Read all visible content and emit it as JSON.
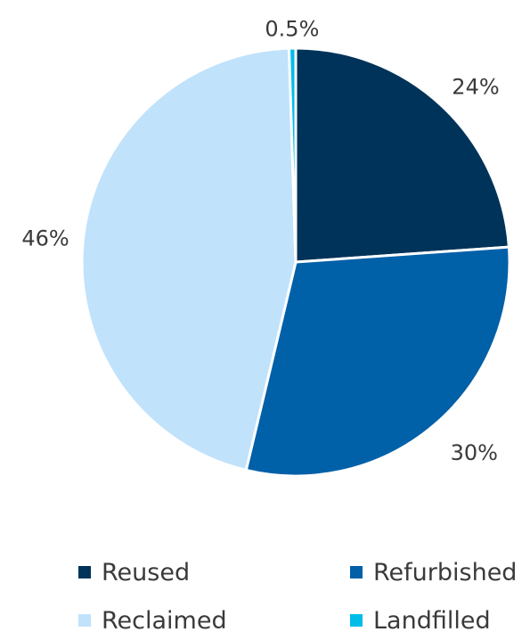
{
  "chart_data": {
    "type": "pie",
    "slices": [
      {
        "label": "Reused",
        "value": 24,
        "display": "24%",
        "color": "#003359"
      },
      {
        "label": "Refurbished",
        "value": 30,
        "display": "30%",
        "color": "#0060a8"
      },
      {
        "label": "Reclaimed",
        "value": 46,
        "display": "46%",
        "color": "#c1e2fb"
      },
      {
        "label": "Landfilled",
        "value": 0.5,
        "display": "0.5%",
        "color": "#00bde8"
      }
    ],
    "start": "top",
    "direction": "clockwise",
    "legend_position": "bottom"
  }
}
